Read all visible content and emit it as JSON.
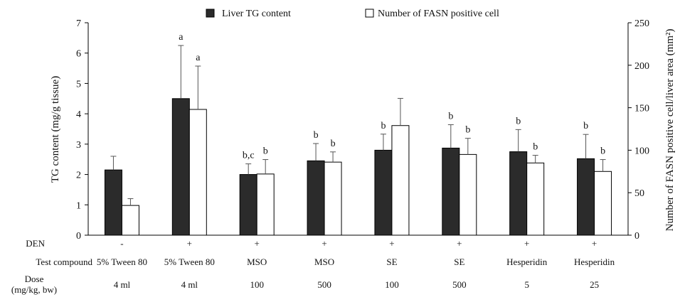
{
  "chart_data": {
    "type": "bar",
    "legend": {
      "position": "top",
      "items": [
        {
          "label": "Liver TG content",
          "color": "#2b2b2b"
        },
        {
          "label": "Number of FASN positive cell",
          "color": "#ffffff"
        }
      ]
    },
    "left_axis": {
      "label": "TG content  (mg/g tissue)",
      "ylim": [
        0,
        7
      ],
      "ticks": [
        0,
        1,
        2,
        3,
        4,
        5,
        6,
        7
      ]
    },
    "right_axis": {
      "label": "Number of FASN positive cell/liver area (mm²)",
      "ylim": [
        0,
        250
      ],
      "ticks": [
        0,
        50,
        100,
        150,
        200,
        250
      ]
    },
    "row_labels": [
      "DEN",
      "Test compound",
      "Dose\n(mg/kg, bw)"
    ],
    "groups": [
      {
        "den": "-",
        "compound": "5% Tween 80",
        "dose": "4 ml"
      },
      {
        "den": "+",
        "compound": "5% Tween 80",
        "dose": "4 ml"
      },
      {
        "den": "+",
        "compound": "MSO",
        "dose": "100"
      },
      {
        "den": "+",
        "compound": "MSO",
        "dose": "500"
      },
      {
        "den": "+",
        "compound": "SE",
        "dose": "100"
      },
      {
        "den": "+",
        "compound": "SE",
        "dose": "500"
      },
      {
        "den": "+",
        "compound": "Hesperidin",
        "dose": "5"
      },
      {
        "den": "+",
        "compound": "Hesperidin",
        "dose": "25"
      }
    ],
    "series": [
      {
        "name": "Liver TG content",
        "axis": "left",
        "color": "#2b2b2b",
        "values": [
          2.15,
          4.5,
          2.0,
          2.45,
          2.8,
          2.87,
          2.75,
          2.52
        ],
        "errors": [
          0.45,
          1.75,
          0.35,
          0.57,
          0.53,
          0.77,
          0.73,
          0.8
        ],
        "labels": [
          "",
          "a",
          "b,c",
          "b",
          "b",
          "b",
          "b",
          "b"
        ]
      },
      {
        "name": "Number of FASN positive cell",
        "axis": "right",
        "color": "#ffffff",
        "values": [
          35,
          148,
          72,
          86,
          129,
          95,
          85,
          75
        ],
        "errors": [
          8,
          51,
          17,
          12,
          32,
          19,
          9,
          14
        ],
        "labels": [
          "",
          "a",
          "b",
          "b",
          "",
          "b",
          "b",
          "b"
        ]
      }
    ]
  }
}
